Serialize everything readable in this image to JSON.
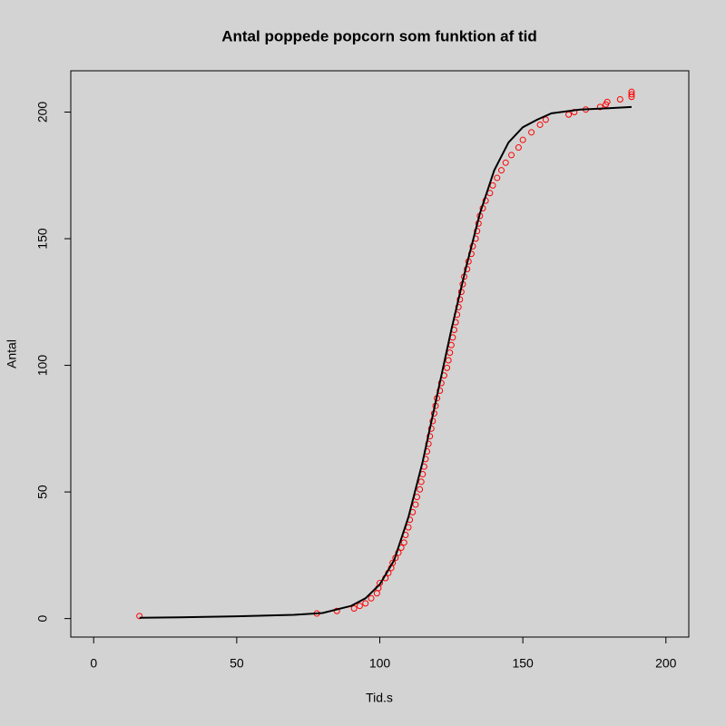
{
  "chart_data": {
    "type": "scatter",
    "title": "Antal poppede popcorn som funktion af tid",
    "x_label": "Tid.s",
    "y_label": "Antal",
    "xlim": [
      -8,
      208
    ],
    "ylim": [
      -7.3,
      216.3
    ],
    "xticks": [
      0,
      50,
      100,
      150,
      200
    ],
    "yticks": [
      0,
      50,
      100,
      150,
      200
    ],
    "grid": false,
    "series": [
      {
        "kind": "points",
        "color": "#ff0000",
        "x": [
          16,
          78,
          85,
          91,
          93,
          95,
          97,
          99,
          99.5,
          100,
          102,
          103,
          104,
          104.5,
          105.5,
          106.5,
          107.5,
          108.5,
          109,
          110,
          110.5,
          111.5,
          112.5,
          113,
          114,
          114.5,
          115,
          115.5,
          116,
          116.5,
          117,
          117.5,
          118,
          118.5,
          119,
          119.5,
          120,
          121,
          121.5,
          122.5,
          123.5,
          124,
          124.5,
          125,
          125.5,
          126,
          126.5,
          127,
          127.5,
          128,
          128.5,
          129,
          129.5,
          130.5,
          131,
          132,
          132.5,
          133.5,
          134,
          134.5,
          135,
          136,
          137,
          138.5,
          139.5,
          141,
          142.5,
          144,
          146,
          148.5,
          150,
          153,
          156,
          158,
          166,
          168,
          172,
          177,
          179,
          179.5,
          184,
          188,
          188,
          188
        ],
        "values": [
          1,
          2,
          3,
          4,
          5,
          6,
          8,
          10,
          12,
          14,
          16,
          18,
          20,
          22,
          24,
          26,
          28,
          30,
          33,
          36,
          39,
          42,
          45,
          48,
          51,
          54,
          57,
          60,
          63,
          66,
          69,
          72,
          75,
          78,
          81,
          84,
          87,
          90,
          93,
          96,
          99,
          102,
          105,
          108,
          111,
          114,
          117,
          120,
          123,
          126,
          129,
          132,
          135,
          138,
          141,
          144,
          147,
          150,
          153,
          156,
          159,
          162,
          165,
          168,
          171,
          174,
          177,
          180,
          183,
          186,
          189,
          192,
          195,
          197,
          199,
          200,
          201,
          202,
          203,
          204,
          205,
          206,
          207,
          208
        ]
      },
      {
        "kind": "line",
        "color": "#000000",
        "x": [
          16,
          30,
          50,
          70,
          80,
          90,
          95,
          100,
          105,
          110,
          115,
          120,
          125,
          130,
          135,
          140,
          145,
          150,
          155,
          160,
          170,
          180,
          188
        ],
        "values": [
          0.3,
          0.5,
          0.9,
          1.5,
          2.2,
          5,
          8,
          13.5,
          23,
          40,
          62,
          88,
          114,
          138,
          160,
          177,
          188,
          194,
          197,
          199.5,
          201,
          201.5,
          202
        ]
      }
    ]
  }
}
